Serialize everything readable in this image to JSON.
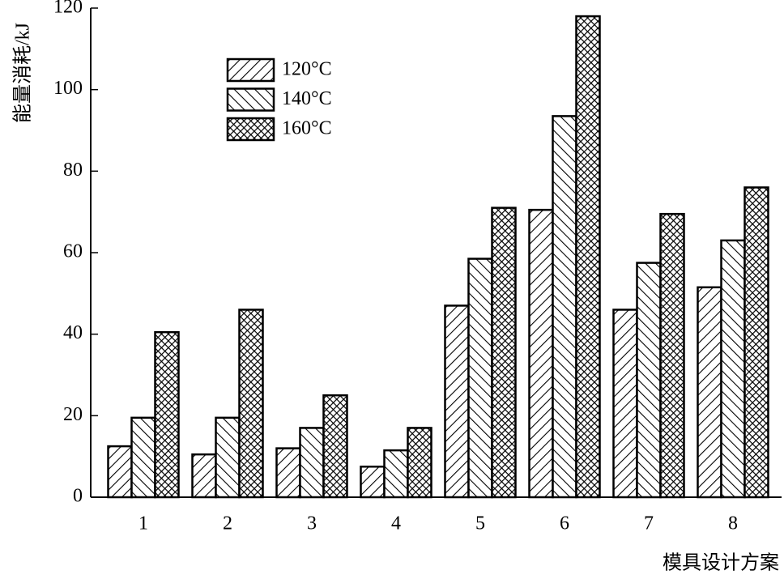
{
  "chart_data": {
    "type": "bar",
    "x_label": "模具设计方案",
    "y_label": "能量消耗/kJ",
    "categories": [
      "1",
      "2",
      "3",
      "4",
      "5",
      "6",
      "7",
      "8"
    ],
    "series": [
      {
        "name": "120°C",
        "color": "#000000",
        "hatch": "/",
        "values": [
          12.5,
          10.5,
          12,
          7.5,
          47,
          70.5,
          46,
          51.5
        ]
      },
      {
        "name": "140°C",
        "color": "#000000",
        "hatch": "\\",
        "values": [
          19.5,
          19.5,
          17,
          11.5,
          58.5,
          93.5,
          57.5,
          63
        ]
      },
      {
        "name": "160°C",
        "color": "#000000",
        "hatch": "x",
        "values": [
          40.5,
          46,
          25,
          17,
          71,
          118,
          69.5,
          76
        ]
      }
    ],
    "ylim": [
      0,
      120
    ],
    "yticks": [
      0,
      20,
      40,
      60,
      80,
      100,
      120
    ],
    "legend": "upper left"
  }
}
